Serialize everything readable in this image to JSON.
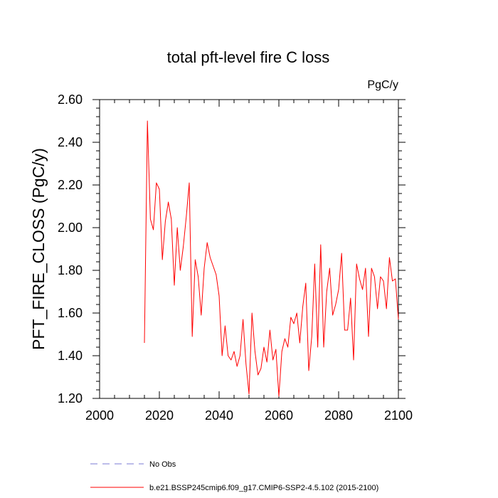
{
  "chart_data": {
    "type": "line",
    "title": "total pft-level fire C loss",
    "units_label": "PgC/y",
    "ylabel": "PFT_FIRE_CLOSS  (PgC/y)",
    "xlabel": "",
    "xlim": [
      2000,
      2100
    ],
    "ylim": [
      1.2,
      2.6
    ],
    "x_ticks": [
      2000,
      2020,
      2040,
      2060,
      2080,
      2100
    ],
    "x_tick_labels": [
      "2000",
      "2020",
      "2040",
      "2060",
      "2080",
      "2100"
    ],
    "y_ticks": [
      1.2,
      1.4,
      1.6,
      1.8,
      2.0,
      2.2,
      2.4,
      2.6
    ],
    "y_tick_labels": [
      "1.20",
      "1.40",
      "1.60",
      "1.80",
      "2.00",
      "2.20",
      "2.40",
      "2.60"
    ],
    "grid": false,
    "series": [
      {
        "name": "b.e21.BSSP245cmip6.f09_g17.CMIP6-SSP2-4.5.102 (2015-2100)",
        "color": "#ff0000",
        "x": [
          2015,
          2016,
          2017,
          2018,
          2019,
          2020,
          2021,
          2022,
          2023,
          2024,
          2025,
          2026,
          2027,
          2028,
          2029,
          2030,
          2031,
          2032,
          2033,
          2034,
          2035,
          2036,
          2037,
          2038,
          2039,
          2040,
          2041,
          2042,
          2043,
          2044,
          2045,
          2046,
          2047,
          2048,
          2049,
          2050,
          2051,
          2052,
          2053,
          2054,
          2055,
          2056,
          2057,
          2058,
          2059,
          2060,
          2061,
          2062,
          2063,
          2064,
          2065,
          2066,
          2067,
          2068,
          2069,
          2070,
          2071,
          2072,
          2073,
          2074,
          2075,
          2076,
          2077,
          2078,
          2079,
          2080,
          2081,
          2082,
          2083,
          2084,
          2085,
          2086,
          2087,
          2088,
          2089,
          2090,
          2091,
          2092,
          2093,
          2094,
          2095,
          2096,
          2097,
          2098,
          2099,
          2100
        ],
        "values": [
          1.46,
          2.5,
          2.04,
          1.99,
          2.21,
          2.18,
          1.85,
          2.03,
          2.12,
          2.04,
          1.73,
          2.0,
          1.8,
          1.91,
          2.05,
          2.21,
          1.49,
          1.85,
          1.77,
          1.59,
          1.81,
          1.93,
          1.86,
          1.82,
          1.78,
          1.68,
          1.4,
          1.54,
          1.4,
          1.38,
          1.42,
          1.35,
          1.4,
          1.57,
          1.36,
          1.22,
          1.6,
          1.42,
          1.31,
          1.34,
          1.44,
          1.37,
          1.52,
          1.38,
          1.43,
          1.21,
          1.42,
          1.48,
          1.44,
          1.58,
          1.55,
          1.6,
          1.46,
          1.63,
          1.74,
          1.33,
          1.49,
          1.83,
          1.44,
          1.92,
          1.44,
          1.7,
          1.81,
          1.59,
          1.64,
          1.71,
          1.88,
          1.52,
          1.52,
          1.67,
          1.38,
          1.83,
          1.76,
          1.71,
          1.81,
          1.49,
          1.81,
          1.77,
          1.62,
          1.77,
          1.75,
          1.62,
          1.86,
          1.75,
          1.76,
          1.57
        ]
      }
    ],
    "legend": [
      {
        "label": "No Obs",
        "color": "#7b7bd6",
        "style": "dashed"
      },
      {
        "label": "b.e21.BSSP245cmip6.f09_g17.CMIP6-SSP2-4.5.102 (2015-2100)",
        "color": "#ff0000",
        "style": "solid"
      }
    ]
  }
}
